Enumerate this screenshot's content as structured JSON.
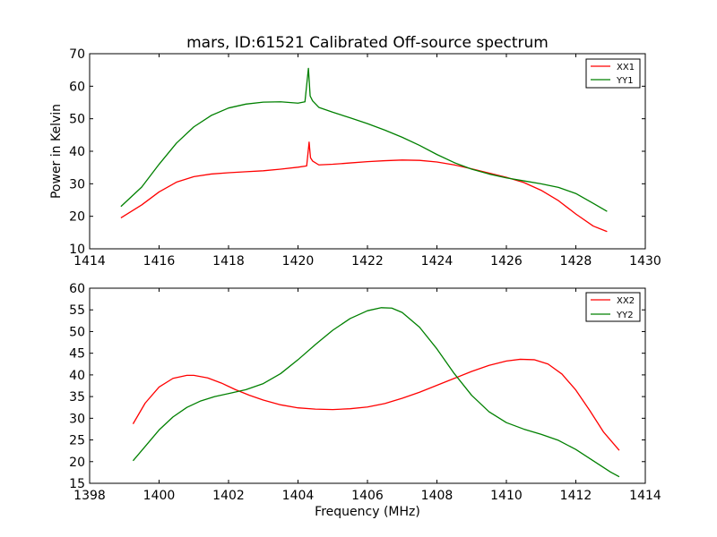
{
  "chart_data": [
    {
      "type": "line",
      "title": "mars, ID:61521 Calibrated Off-source spectrum",
      "xlabel": "",
      "ylabel": "Power in Kelvin",
      "xlim": [
        1414,
        1430
      ],
      "ylim": [
        10,
        70
      ],
      "xticks": [
        1414,
        1416,
        1418,
        1420,
        1422,
        1424,
        1426,
        1428,
        1430
      ],
      "yticks": [
        10,
        20,
        30,
        40,
        50,
        60,
        70
      ],
      "grid": false,
      "legend_position": "top-right",
      "series": [
        {
          "name": "XX1",
          "color": "#ff0000",
          "x": [
            1414.9,
            1415.5,
            1416.0,
            1416.5,
            1417.0,
            1417.5,
            1418.0,
            1418.5,
            1419.0,
            1419.5,
            1420.0,
            1420.25,
            1420.32,
            1420.36,
            1420.42,
            1420.6,
            1421.0,
            1421.5,
            1422.0,
            1422.5,
            1423.0,
            1423.5,
            1424.0,
            1424.5,
            1425.0,
            1425.5,
            1426.0,
            1426.5,
            1427.0,
            1427.5,
            1428.0,
            1428.5,
            1428.9
          ],
          "y": [
            19.5,
            23.5,
            27.5,
            30.5,
            32.2,
            33.0,
            33.4,
            33.7,
            34.0,
            34.5,
            35.1,
            35.5,
            42.8,
            38.0,
            37.0,
            35.8,
            36.0,
            36.4,
            36.8,
            37.1,
            37.3,
            37.2,
            36.7,
            35.8,
            34.6,
            33.3,
            32.0,
            30.4,
            28.0,
            24.8,
            20.7,
            17.0,
            15.3
          ]
        },
        {
          "name": "YY1",
          "color": "#008000",
          "x": [
            1414.9,
            1415.5,
            1416.0,
            1416.5,
            1417.0,
            1417.5,
            1418.0,
            1418.5,
            1419.0,
            1419.5,
            1420.0,
            1420.2,
            1420.3,
            1420.35,
            1420.42,
            1420.6,
            1421.0,
            1421.5,
            1422.0,
            1422.5,
            1423.0,
            1423.5,
            1424.0,
            1424.5,
            1425.0,
            1425.5,
            1426.0,
            1426.5,
            1427.0,
            1427.5,
            1428.0,
            1428.5,
            1428.9
          ],
          "y": [
            23.0,
            29.0,
            36.0,
            42.5,
            47.5,
            51.0,
            53.3,
            54.5,
            55.1,
            55.2,
            54.8,
            55.2,
            65.5,
            57.0,
            55.5,
            53.5,
            52.0,
            50.3,
            48.5,
            46.5,
            44.3,
            41.8,
            39.0,
            36.5,
            34.5,
            33.0,
            31.8,
            30.9,
            30.0,
            28.9,
            27.0,
            24.0,
            21.5
          ]
        }
      ]
    },
    {
      "type": "line",
      "title": "",
      "xlabel": "Frequency (MHz)",
      "ylabel": "",
      "xlim": [
        1398,
        1414
      ],
      "ylim": [
        15,
        60
      ],
      "xticks": [
        1398,
        1400,
        1402,
        1404,
        1406,
        1408,
        1410,
        1412,
        1414
      ],
      "yticks": [
        15,
        20,
        25,
        30,
        35,
        40,
        45,
        50,
        55,
        60
      ],
      "grid": false,
      "legend_position": "top-right",
      "series": [
        {
          "name": "XX2",
          "color": "#ff0000",
          "x": [
            1399.25,
            1399.6,
            1400.0,
            1400.4,
            1400.8,
            1401.0,
            1401.4,
            1401.8,
            1402.2,
            1402.6,
            1403.0,
            1403.5,
            1404.0,
            1404.5,
            1405.0,
            1405.5,
            1406.0,
            1406.5,
            1407.0,
            1407.5,
            1408.0,
            1408.5,
            1409.0,
            1409.5,
            1410.0,
            1410.4,
            1410.8,
            1411.2,
            1411.6,
            1412.0,
            1412.4,
            1412.8,
            1413.25
          ],
          "y": [
            28.7,
            33.5,
            37.2,
            39.2,
            39.9,
            39.9,
            39.3,
            38.1,
            36.6,
            35.3,
            34.2,
            33.1,
            32.4,
            32.1,
            32.0,
            32.2,
            32.6,
            33.4,
            34.6,
            36.0,
            37.6,
            39.2,
            40.8,
            42.2,
            43.2,
            43.6,
            43.5,
            42.5,
            40.2,
            36.5,
            31.8,
            26.8,
            22.6
          ]
        },
        {
          "name": "YY2",
          "color": "#008000",
          "x": [
            1399.25,
            1399.6,
            1400.0,
            1400.4,
            1400.8,
            1401.2,
            1401.6,
            1402.0,
            1402.5,
            1403.0,
            1403.5,
            1404.0,
            1404.5,
            1405.0,
            1405.5,
            1406.0,
            1406.4,
            1406.7,
            1407.0,
            1407.5,
            1408.0,
            1408.5,
            1409.0,
            1409.5,
            1410.0,
            1410.5,
            1411.0,
            1411.5,
            1412.0,
            1412.5,
            1413.0,
            1413.25
          ],
          "y": [
            20.2,
            23.5,
            27.3,
            30.3,
            32.5,
            34.0,
            35.0,
            35.7,
            36.6,
            38.0,
            40.3,
            43.5,
            47.0,
            50.3,
            53.0,
            54.8,
            55.5,
            55.4,
            54.4,
            51.0,
            46.0,
            40.3,
            35.3,
            31.5,
            29.0,
            27.5,
            26.3,
            24.9,
            22.8,
            20.2,
            17.6,
            16.5
          ]
        }
      ]
    }
  ]
}
